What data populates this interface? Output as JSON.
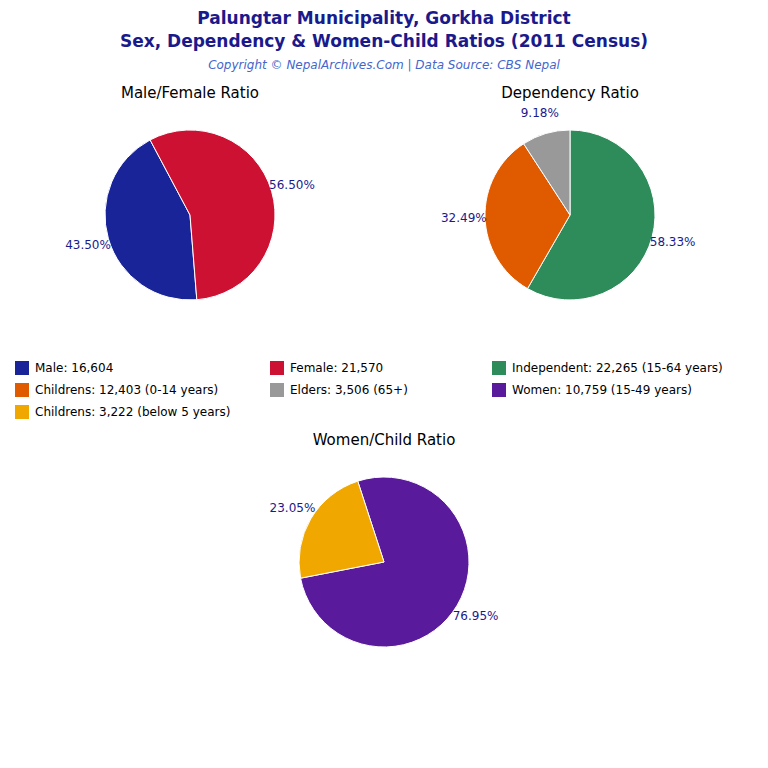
{
  "title": "Palungtar Municipality, Gorkha District",
  "subtitle": "Sex, Dependency & Women-Child Ratios (2011 Census)",
  "annotations": [
    "Copyright © NepalArchives.Com | Data Source: CBS Nepal"
  ],
  "chart_data": [
    {
      "type": "pie",
      "title": "Male/Female Ratio",
      "categories": [
        "Male: 16,604",
        "Female: 21,570"
      ],
      "values": [
        43.5,
        56.5
      ],
      "value_labels": [
        "43.50%",
        "56.50%"
      ],
      "colors": [
        "#1a2499",
        "#cc1133"
      ],
      "data_labels": true,
      "legend": "bottom"
    },
    {
      "type": "pie",
      "title": "Dependency Ratio",
      "categories": [
        "Independent: 22,265 (15-64 years)",
        "Childrens: 12,403 (0-14 years)",
        "Elders: 3,506 (65+)"
      ],
      "values": [
        58.33,
        32.49,
        9.18
      ],
      "value_labels": [
        "58.33%",
        "32.49%",
        "9.18%"
      ],
      "colors": [
        "#2e8b5a",
        "#e05a00",
        "#999999"
      ],
      "data_labels": true,
      "legend": "bottom"
    },
    {
      "type": "pie",
      "title": "Women/Child Ratio",
      "categories": [
        "Women: 10,759 (15-49 years)",
        "Childrens: 3,222 (below 5 years)"
      ],
      "values": [
        76.95,
        23.05
      ],
      "value_labels": [
        "76.95%",
        "23.05%"
      ],
      "colors": [
        "#5a1a9c",
        "#f0a800"
      ],
      "data_labels": true,
      "legend": "bottom"
    }
  ]
}
